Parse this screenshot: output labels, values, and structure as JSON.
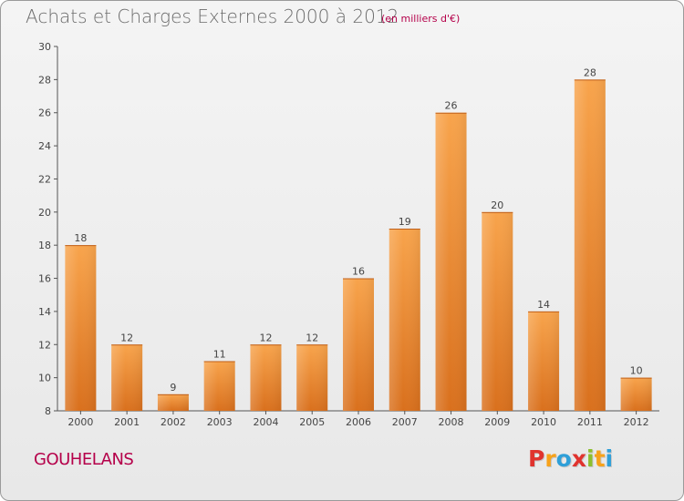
{
  "chart_data": {
    "type": "bar",
    "title": "Achats et Charges Externes 2000 à 2012",
    "subtitle": "(en milliers d'€)",
    "categories": [
      "2000",
      "2001",
      "2002",
      "2003",
      "2004",
      "2005",
      "2006",
      "2007",
      "2008",
      "2009",
      "2010",
      "2011",
      "2012"
    ],
    "values": [
      18,
      12,
      9,
      11,
      12,
      12,
      16,
      19,
      26,
      20,
      14,
      28,
      10
    ],
    "ylim": [
      8,
      30
    ],
    "yticks": [
      8,
      10,
      12,
      14,
      16,
      18,
      20,
      22,
      24,
      26,
      28,
      30
    ],
    "xlabel": "",
    "ylabel": "",
    "grid": false,
    "bar_color": "#f0912f"
  },
  "town": "GOUHELANS",
  "logo": {
    "text": "Proxiti",
    "colors": [
      "#e0332e",
      "#f7a21b",
      "#2f9fd8",
      "#e0332e",
      "#8dbf2e",
      "#f7a21b",
      "#2f9fd8"
    ]
  }
}
